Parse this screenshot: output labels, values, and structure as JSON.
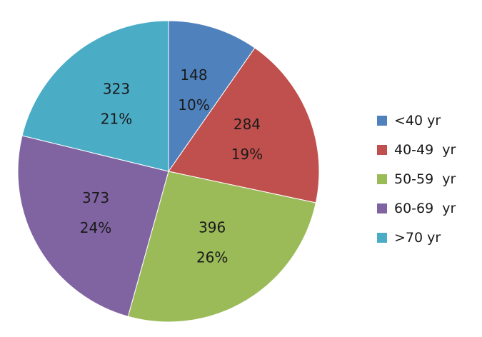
{
  "chart_data": {
    "type": "pie",
    "title": "",
    "legend_position": "right",
    "start_angle": "12 o'clock, clockwise",
    "slices": [
      {
        "label": "<40 yr",
        "value": 148,
        "percent": "10%",
        "color": "#4f81bd"
      },
      {
        "label": "40-49  yr",
        "value": 284,
        "percent": "19%",
        "color": "#c0504d"
      },
      {
        "label": "50-59  yr",
        "value": 396,
        "percent": "26%",
        "color": "#9bbb59"
      },
      {
        "label": "60-69  yr",
        "value": 373,
        "percent": "24%",
        "color": "#8064a2"
      },
      {
        "label": ">70 yr",
        "value": 323,
        "percent": "21%",
        "color": "#4bacc6"
      }
    ]
  }
}
